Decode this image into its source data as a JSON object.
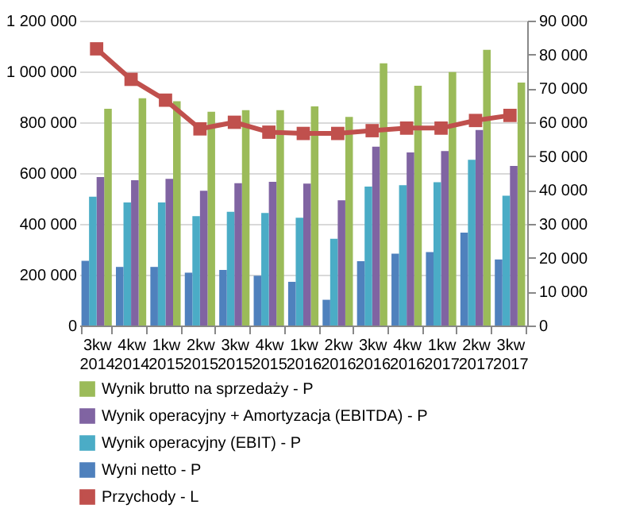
{
  "chart_data": {
    "type": "bar",
    "categories": [
      "3kw 2014",
      "4kw 2014",
      "1kw 2015",
      "2kw 2015",
      "3kw 2015",
      "4kw 2015",
      "1kw 2016",
      "2kw 2016",
      "3kw 2016",
      "4kw 2016",
      "1kw 2017",
      "2kw 2017",
      "3kw 2017"
    ],
    "series": [
      {
        "name": "Wynik brutto na sprzedaży - P",
        "color": "#9bbb59",
        "axis": "y2",
        "values": [
          64000,
          67100,
          66200,
          63100,
          63600,
          63600,
          64700,
          61600,
          77400,
          70800,
          74800,
          81400,
          71700
        ]
      },
      {
        "name": "Wynik operacyjny + Amortyzacja (EBITDA) - P",
        "color": "#8064a2",
        "axis": "y2",
        "values": [
          43800,
          42900,
          43300,
          39800,
          42000,
          42400,
          41900,
          37000,
          52800,
          51100,
          51500,
          57700,
          47100
        ]
      },
      {
        "name": "Wynik operacyjny (EBIT) - P",
        "color": "#4bacc6",
        "axis": "y2",
        "values": [
          38000,
          36300,
          36300,
          32300,
          33600,
          33200,
          31800,
          25600,
          41000,
          41400,
          42300,
          48900,
          38300
        ]
      },
      {
        "name": "Wyni netto - P",
        "color": "#4f81bd",
        "axis": "y2",
        "values": [
          19100,
          17300,
          17300,
          15600,
          16400,
          14700,
          12900,
          7600,
          19000,
          21200,
          21700,
          27400,
          19500
        ]
      },
      {
        "name": "Przychody - L",
        "color": "#c0504d",
        "type": "line",
        "axis": "y",
        "marker": "square",
        "values": [
          1089000,
          969000,
          887000,
          774000,
          800000,
          761000,
          756000,
          756000,
          767000,
          777000,
          777000,
          807000,
          827000
        ]
      }
    ],
    "ylim": [
      0,
      1200000
    ],
    "yticks": [
      {
        "value": 0,
        "label": "0"
      },
      {
        "value": 200000,
        "label": "200 000"
      },
      {
        "value": 400000,
        "label": "400 000"
      },
      {
        "value": 600000,
        "label": "600 000"
      },
      {
        "value": 800000,
        "label": "800 000"
      },
      {
        "value": 1000000,
        "label": "1 000 000"
      },
      {
        "value": 1200000,
        "label": "1 200 000"
      }
    ],
    "y2lim": [
      0,
      90000
    ],
    "y2ticks": [
      {
        "value": 0,
        "label": "0"
      },
      {
        "value": 10000,
        "label": "10 000"
      },
      {
        "value": 20000,
        "label": "20 000"
      },
      {
        "value": 30000,
        "label": "30 000"
      },
      {
        "value": 40000,
        "label": "40 000"
      },
      {
        "value": 50000,
        "label": "50 000"
      },
      {
        "value": 60000,
        "label": "60 000"
      },
      {
        "value": 70000,
        "label": "70 000"
      },
      {
        "value": 80000,
        "label": "80 000"
      },
      {
        "value": 90000,
        "label": "90 000"
      }
    ],
    "grid": "y",
    "legend": "bottom"
  }
}
